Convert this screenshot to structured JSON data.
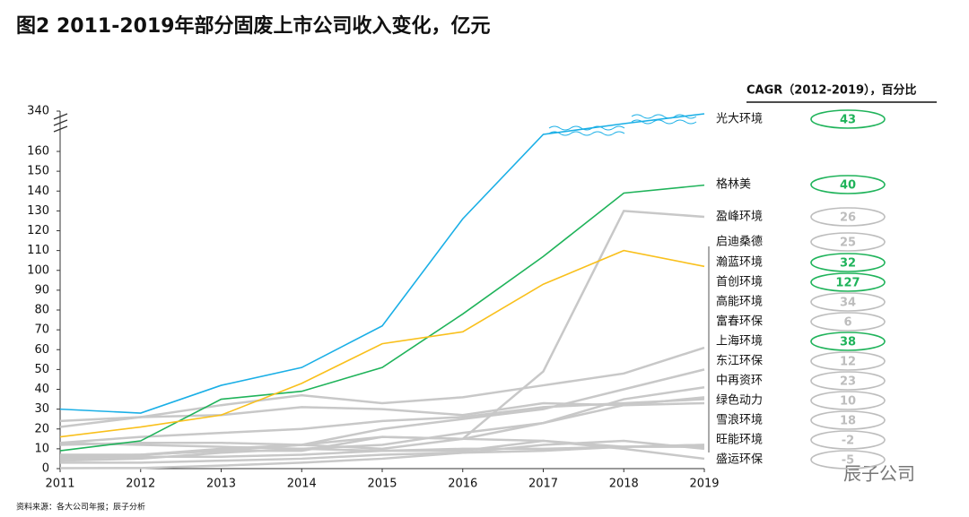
{
  "chart_data": {
    "type": "line",
    "title": "图2 2011-2019年部分固废上市公司收入变化，亿元",
    "cagr_header": "CAGR（2012-2019），百分比",
    "source": "资料来源：各大公司年报；辰子分析",
    "watermark": "辰子公司",
    "x": [
      2011,
      2012,
      2013,
      2014,
      2015,
      2016,
      2017,
      2018,
      2019
    ],
    "xlim": [
      2011,
      2019
    ],
    "ylim": [
      0,
      340
    ],
    "yticks": [
      0,
      10,
      20,
      30,
      40,
      50,
      60,
      70,
      80,
      90,
      100,
      110,
      120,
      130,
      140,
      150,
      160,
      340
    ],
    "ybreak": 160,
    "series": [
      {
        "name": "光大环境",
        "color": "#1aafe6",
        "cagr": 43,
        "cagr_color": "#1fb35a",
        "values": [
          30,
          28,
          42,
          51,
          72,
          126,
          236,
          284,
          328
        ]
      },
      {
        "name": "格林美",
        "color": "#1fb35a",
        "cagr": 40,
        "cagr_color": "#1fb35a",
        "values": [
          9,
          14,
          35,
          39,
          51,
          78,
          107,
          139,
          143
        ]
      },
      {
        "name": "盈峰环境",
        "color": "#c8c8c8",
        "cagr": 26,
        "cagr_color": "#bdbdbd",
        "values": [
          12,
          13,
          13,
          12,
          10,
          15,
          49,
          130,
          127
        ]
      },
      {
        "name": "启迪桑德",
        "color": "#c8c8c8",
        "cagr": 25,
        "cagr_color": "#bdbdbd",
        "values": [
          21,
          26,
          32,
          37,
          33,
          36,
          42,
          48,
          61
        ]
      },
      {
        "name": "瀚蓝环境",
        "color": "#f9c01c",
        "cagr": 32,
        "cagr_color": "#1fb35a",
        "values": [
          16,
          21,
          27,
          43,
          63,
          69,
          93,
          110,
          102
        ]
      },
      {
        "name": "首创环境",
        "color": "#c8c8c8",
        "cagr": 127,
        "cagr_color": "#1fb35a",
        "values": [
          0.2,
          0.3,
          1.5,
          3,
          5,
          8,
          12,
          14,
          10
        ]
      },
      {
        "name": "高能环境",
        "color": "#c8c8c8",
        "cagr": 34,
        "cagr_color": "#bdbdbd",
        "values": [
          4,
          5,
          8,
          10,
          12,
          18,
          23,
          35,
          41
        ]
      },
      {
        "name": "富春环保",
        "color": "#c8c8c8",
        "cagr": 6,
        "cagr_color": "#bdbdbd",
        "values": [
          24,
          26,
          27,
          31,
          30,
          27,
          33,
          32,
          36
        ]
      },
      {
        "name": "上海环境",
        "color": "#c8c8c8",
        "cagr": 38,
        "cagr_color": "#1fb35a",
        "values": [
          7,
          7,
          9,
          12,
          20,
          25,
          30,
          40,
          50
        ]
      },
      {
        "name": "东江环保",
        "color": "#c8c8c8",
        "cagr": 12,
        "cagr_color": "#bdbdbd",
        "values": [
          13,
          16,
          18,
          20,
          24,
          26,
          31,
          33,
          35
        ]
      },
      {
        "name": "中再资环",
        "color": "#c8c8c8",
        "cagr": 23,
        "cagr_color": "#bdbdbd",
        "values": [
          6,
          7,
          9,
          9,
          16,
          15,
          23,
          32,
          33
        ]
      },
      {
        "name": "绿色动力",
        "color": "#c8c8c8",
        "cagr": 10,
        "cagr_color": "#bdbdbd",
        "values": [
          5,
          6,
          6,
          7,
          9,
          10,
          10,
          11,
          12
        ]
      },
      {
        "name": "雪浪环境",
        "color": "#c8c8c8",
        "cagr": 18,
        "cagr_color": "#bdbdbd",
        "values": [
          3,
          3,
          4,
          5,
          7,
          8,
          9,
          11,
          12
        ]
      },
      {
        "name": "旺能环境",
        "color": "#c8c8c8",
        "cagr": -2,
        "cagr_color": "#bdbdbd",
        "values": [
          13,
          12,
          11,
          10,
          9,
          9,
          14,
          11,
          11
        ]
      },
      {
        "name": "盛运环保",
        "color": "#c8c8c8",
        "cagr": -5,
        "cagr_color": "#bdbdbd",
        "values": [
          6,
          7,
          10,
          12,
          16,
          15,
          14,
          10,
          5
        ]
      }
    ]
  }
}
